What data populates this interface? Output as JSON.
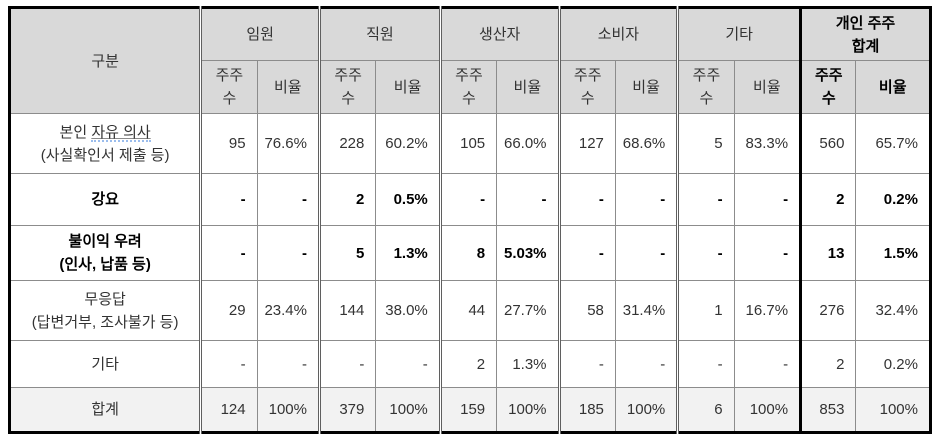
{
  "table": {
    "corner_label": "구분",
    "groups": [
      {
        "label": "임원"
      },
      {
        "label": "직원"
      },
      {
        "label": "생산자"
      },
      {
        "label": "소비자"
      },
      {
        "label": "기타"
      },
      {
        "label": "개인 주주\n합계"
      }
    ],
    "subheaders": {
      "count": "주주\n수",
      "ratio": "비율"
    },
    "rows": [
      {
        "bold": false,
        "total": false,
        "label_lines": [
          [
            {
              "t": "본인 "
            },
            {
              "t": "자유 의사",
              "u": true
            }
          ],
          [
            {
              "t": "(사실확인서 제출 등)"
            }
          ]
        ],
        "values": [
          "95",
          "76.6%",
          "228",
          "60.2%",
          "105",
          "66.0%",
          "127",
          "68.6%",
          "5",
          "83.3%",
          "560",
          "65.7%"
        ]
      },
      {
        "bold": true,
        "total": false,
        "label_lines": [
          [
            {
              "t": "강요"
            }
          ]
        ],
        "values": [
          "-",
          "-",
          "2",
          "0.5%",
          "-",
          "-",
          "-",
          "-",
          "-",
          "-",
          "2",
          "0.2%"
        ]
      },
      {
        "bold": true,
        "total": false,
        "label_lines": [
          [
            {
              "t": "불이익 우려"
            }
          ],
          [
            {
              "t": "(인사, 납품 등)"
            }
          ]
        ],
        "values": [
          "-",
          "-",
          "5",
          "1.3%",
          "8",
          "5.03%",
          "-",
          "-",
          "-",
          "-",
          "13",
          "1.5%"
        ]
      },
      {
        "bold": false,
        "total": false,
        "label_lines": [
          [
            {
              "t": "무응답"
            }
          ],
          [
            {
              "t": "(답변거부, 조사불가 등)"
            }
          ]
        ],
        "values": [
          "29",
          "23.4%",
          "144",
          "38.0%",
          "44",
          "27.7%",
          "58",
          "31.4%",
          "1",
          "16.7%",
          "276",
          "32.4%"
        ]
      },
      {
        "bold": false,
        "total": false,
        "label_lines": [
          [
            {
              "t": "기타"
            }
          ]
        ],
        "values": [
          "-",
          "-",
          "-",
          "-",
          "2",
          "1.3%",
          "-",
          "-",
          "-",
          "-",
          "2",
          "0.2%"
        ]
      },
      {
        "bold": false,
        "total": true,
        "label_lines": [
          [
            {
              "t": "합계"
            }
          ]
        ],
        "values": [
          "124",
          "100%",
          "379",
          "100%",
          "159",
          "100%",
          "185",
          "100%",
          "6",
          "100%",
          "853",
          "100%"
        ]
      }
    ],
    "colors": {
      "header_bg": "#d9d9d9",
      "total_row_bg": "#f2f2f2",
      "outer_border": "#000000",
      "grid_line": "#8c8c8c",
      "group_divider": "#5f5f5f",
      "spellcheck_underline": "#7aa7e8"
    }
  }
}
